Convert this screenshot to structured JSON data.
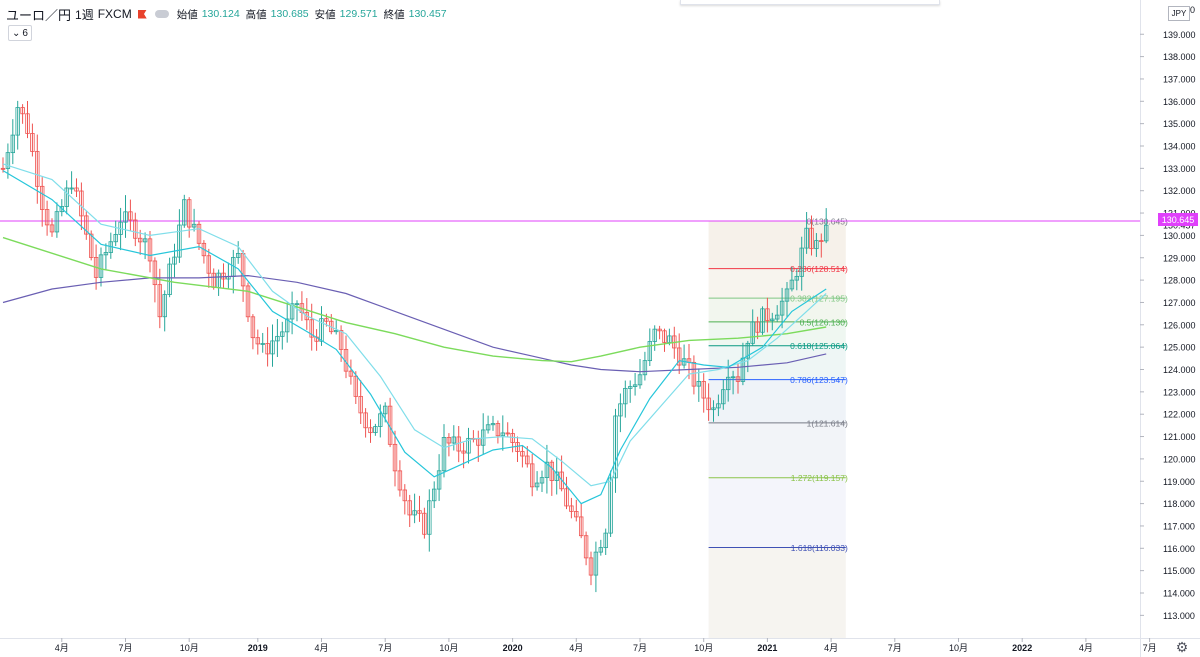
{
  "header": {
    "symbol": "ユーロ／円",
    "timeframe": "1週",
    "exchange": "FXCM",
    "open_label": "始値",
    "open_value": "130.124",
    "high_label": "高値",
    "high_value": "130.685",
    "low_label": "安値",
    "low_value": "129.571",
    "close_label": "終値",
    "close_value": "130.457"
  },
  "indicator_toggle": {
    "count": "6",
    "icon": "chevron-down-icon"
  },
  "axis": {
    "currency": "JPY",
    "currency_suffix": "0",
    "settings_icon": "gear-icon",
    "last_price_badge": "130.645",
    "close_label": "130.457"
  },
  "colors": {
    "up": "#26a69a",
    "down": "#ef5350",
    "ma_fast": "#26c6da",
    "ma_mid": "#80deea",
    "ma_slow": "#7cdb5c",
    "ma_long": "#6a5fb3",
    "hline": "#e040fb"
  },
  "chart_data": {
    "type": "candlestick",
    "yrange": [
      112.0,
      140.0
    ],
    "y_ticks": [
      113,
      114,
      115,
      116,
      117,
      118,
      119,
      120,
      121,
      122,
      123,
      124,
      125,
      126,
      127,
      128,
      129,
      130,
      131,
      132,
      133,
      134,
      135,
      136,
      137,
      138,
      139
    ],
    "y_tick_labels": [
      "113.000",
      "114.000",
      "115.000",
      "116.000",
      "117.000",
      "118.000",
      "119.000",
      "120.000",
      "121.000",
      "122.000",
      "123.000",
      "124.000",
      "125.000",
      "126.000",
      "127.000",
      "128.000",
      "129.000",
      "130.000",
      "131.000",
      "132.000",
      "133.000",
      "134.000",
      "135.000",
      "136.000",
      "137.000",
      "138.000",
      "139.000"
    ],
    "x_ticks": [
      {
        "label": "4月",
        "bold": false,
        "week": 12
      },
      {
        "label": "7月",
        "bold": false,
        "week": 25
      },
      {
        "label": "10月",
        "bold": false,
        "week": 38
      },
      {
        "label": "2019",
        "bold": true,
        "week": 52
      },
      {
        "label": "4月",
        "bold": false,
        "week": 65
      },
      {
        "label": "7月",
        "bold": false,
        "week": 78
      },
      {
        "label": "10月",
        "bold": false,
        "week": 91
      },
      {
        "label": "2020",
        "bold": true,
        "week": 104
      },
      {
        "label": "4月",
        "bold": false,
        "week": 117
      },
      {
        "label": "7月",
        "bold": false,
        "week": 130
      },
      {
        "label": "10月",
        "bold": false,
        "week": 143
      },
      {
        "label": "2021",
        "bold": true,
        "week": 156
      },
      {
        "label": "4月",
        "bold": false,
        "week": 169
      },
      {
        "label": "7月",
        "bold": false,
        "week": 182
      },
      {
        "label": "10月",
        "bold": false,
        "week": 195
      },
      {
        "label": "2022",
        "bold": true,
        "week": 208
      },
      {
        "label": "4月",
        "bold": false,
        "week": 221
      },
      {
        "label": "7月",
        "bold": false,
        "week": 234
      }
    ],
    "price_anchors": [
      [
        0,
        133.0
      ],
      [
        3,
        135.8
      ],
      [
        5,
        134.8
      ],
      [
        8,
        131.5
      ],
      [
        10,
        130.0
      ],
      [
        14,
        132.5
      ],
      [
        19,
        128.2
      ],
      [
        24,
        130.8
      ],
      [
        27,
        130.3
      ],
      [
        30,
        129.3
      ],
      [
        32,
        126.4
      ],
      [
        37,
        131.3
      ],
      [
        43,
        128.0
      ],
      [
        48,
        129.0
      ],
      [
        51,
        125.6
      ],
      [
        53,
        124.8
      ],
      [
        58,
        126.0
      ],
      [
        60,
        127.0
      ],
      [
        63,
        125.5
      ],
      [
        66,
        126.0
      ],
      [
        69,
        125.0
      ],
      [
        72,
        122.5
      ],
      [
        75,
        121.4
      ],
      [
        78,
        122.0
      ],
      [
        80,
        119.8
      ],
      [
        83,
        117.5
      ],
      [
        86,
        117.0
      ],
      [
        90,
        120.7
      ],
      [
        93,
        120.5
      ],
      [
        96,
        120.8
      ],
      [
        99,
        121.2
      ],
      [
        102,
        121.3
      ],
      [
        105,
        120.5
      ],
      [
        108,
        119.2
      ],
      [
        111,
        119.7
      ],
      [
        114,
        118.6
      ],
      [
        117,
        117.0
      ],
      [
        120,
        115.2
      ],
      [
        123,
        117.0
      ],
      [
        125,
        122.0
      ],
      [
        127,
        123.0
      ],
      [
        130,
        123.8
      ],
      [
        133,
        125.6
      ],
      [
        136,
        125.3
      ],
      [
        139,
        124.3
      ],
      [
        142,
        123.1
      ],
      [
        145,
        122.2
      ],
      [
        148,
        124.1
      ],
      [
        150,
        123.7
      ],
      [
        152,
        125.5
      ],
      [
        154,
        126.1
      ],
      [
        157,
        126.6
      ],
      [
        160,
        127.2
      ],
      [
        162,
        128.5
      ],
      [
        164,
        129.9
      ],
      [
        166,
        129.5
      ],
      [
        168,
        130.46
      ]
    ],
    "ma_fast": [
      [
        0,
        132.9
      ],
      [
        10,
        131.6
      ],
      [
        20,
        129.6
      ],
      [
        30,
        129.1
      ],
      [
        40,
        129.5
      ],
      [
        48,
        128.5
      ],
      [
        55,
        126.6
      ],
      [
        62,
        125.7
      ],
      [
        68,
        124.9
      ],
      [
        75,
        122.9
      ],
      [
        82,
        120.3
      ],
      [
        88,
        119.2
      ],
      [
        94,
        119.8
      ],
      [
        100,
        120.4
      ],
      [
        106,
        120.6
      ],
      [
        112,
        119.6
      ],
      [
        118,
        118.0
      ],
      [
        122,
        118.4
      ],
      [
        126,
        120.4
      ],
      [
        132,
        122.7
      ],
      [
        138,
        124.4
      ],
      [
        143,
        124.2
      ],
      [
        148,
        124.1
      ],
      [
        155,
        125.0
      ],
      [
        161,
        126.6
      ],
      [
        168,
        127.6
      ]
    ],
    "ma_mid": [
      [
        0,
        133.2
      ],
      [
        10,
        132.5
      ],
      [
        20,
        130.5
      ],
      [
        30,
        130.0
      ],
      [
        40,
        130.3
      ],
      [
        48,
        129.5
      ],
      [
        55,
        127.5
      ],
      [
        62,
        126.4
      ],
      [
        70,
        125.6
      ],
      [
        77,
        123.7
      ],
      [
        84,
        121.3
      ],
      [
        90,
        120.5
      ],
      [
        96,
        120.9
      ],
      [
        102,
        121.0
      ],
      [
        108,
        120.9
      ],
      [
        114,
        119.9
      ],
      [
        120,
        118.8
      ],
      [
        124,
        119.0
      ],
      [
        128,
        120.8
      ],
      [
        134,
        122.3
      ],
      [
        140,
        123.8
      ],
      [
        146,
        124.0
      ],
      [
        152,
        124.4
      ],
      [
        158,
        125.4
      ],
      [
        163,
        126.4
      ],
      [
        168,
        127.4
      ]
    ],
    "ma_slow": [
      [
        0,
        129.9
      ],
      [
        20,
        128.5
      ],
      [
        35,
        127.9
      ],
      [
        50,
        127.5
      ],
      [
        60,
        126.8
      ],
      [
        70,
        126.1
      ],
      [
        80,
        125.6
      ],
      [
        90,
        125.0
      ],
      [
        100,
        124.6
      ],
      [
        110,
        124.4
      ],
      [
        116,
        124.35
      ],
      [
        122,
        124.6
      ],
      [
        130,
        125.0
      ],
      [
        140,
        125.3
      ],
      [
        150,
        125.4
      ],
      [
        160,
        125.6
      ],
      [
        168,
        125.9
      ]
    ],
    "ma_long": [
      [
        0,
        127.0
      ],
      [
        10,
        127.6
      ],
      [
        20,
        127.9
      ],
      [
        30,
        128.1
      ],
      [
        40,
        128.1
      ],
      [
        50,
        128.2
      ],
      [
        60,
        127.9
      ],
      [
        70,
        127.4
      ],
      [
        80,
        126.6
      ],
      [
        90,
        125.8
      ],
      [
        100,
        125.0
      ],
      [
        108,
        124.6
      ],
      [
        116,
        124.2
      ],
      [
        122,
        124.0
      ],
      [
        130,
        123.9
      ],
      [
        140,
        124.0
      ],
      [
        150,
        124.1
      ],
      [
        160,
        124.3
      ],
      [
        168,
        124.7
      ]
    ],
    "horizontal_line": 130.645,
    "fibonacci": {
      "start_week": 144,
      "end_week": 172,
      "levels": [
        {
          "ratio": "0",
          "price": 130.645,
          "label": "0(130.645)",
          "color": "#787b86"
        },
        {
          "ratio": "0.236",
          "price": 128.514,
          "label": "0.236(128.514)",
          "color": "#f23645"
        },
        {
          "ratio": "0.382",
          "price": 127.195,
          "label": "0.382(127.195)",
          "color": "#81c784"
        },
        {
          "ratio": "0.5",
          "price": 126.13,
          "label": "0.5(126.130)",
          "color": "#4caf50"
        },
        {
          "ratio": "0.618",
          "price": 125.064,
          "label": "0.618(125.064)",
          "color": "#089981"
        },
        {
          "ratio": "0.786",
          "price": 123.547,
          "label": "0.786(123.547)",
          "color": "#2962ff"
        },
        {
          "ratio": "1",
          "price": 121.614,
          "label": "1(121.614)",
          "color": "#787b86"
        },
        {
          "ratio": "1.272",
          "price": 119.157,
          "label": "1.272(119.157)",
          "color": "#8bc34a"
        },
        {
          "ratio": "1.618",
          "price": 116.033,
          "label": "1.618(116.033)",
          "color": "#3f51b5"
        }
      ]
    }
  }
}
